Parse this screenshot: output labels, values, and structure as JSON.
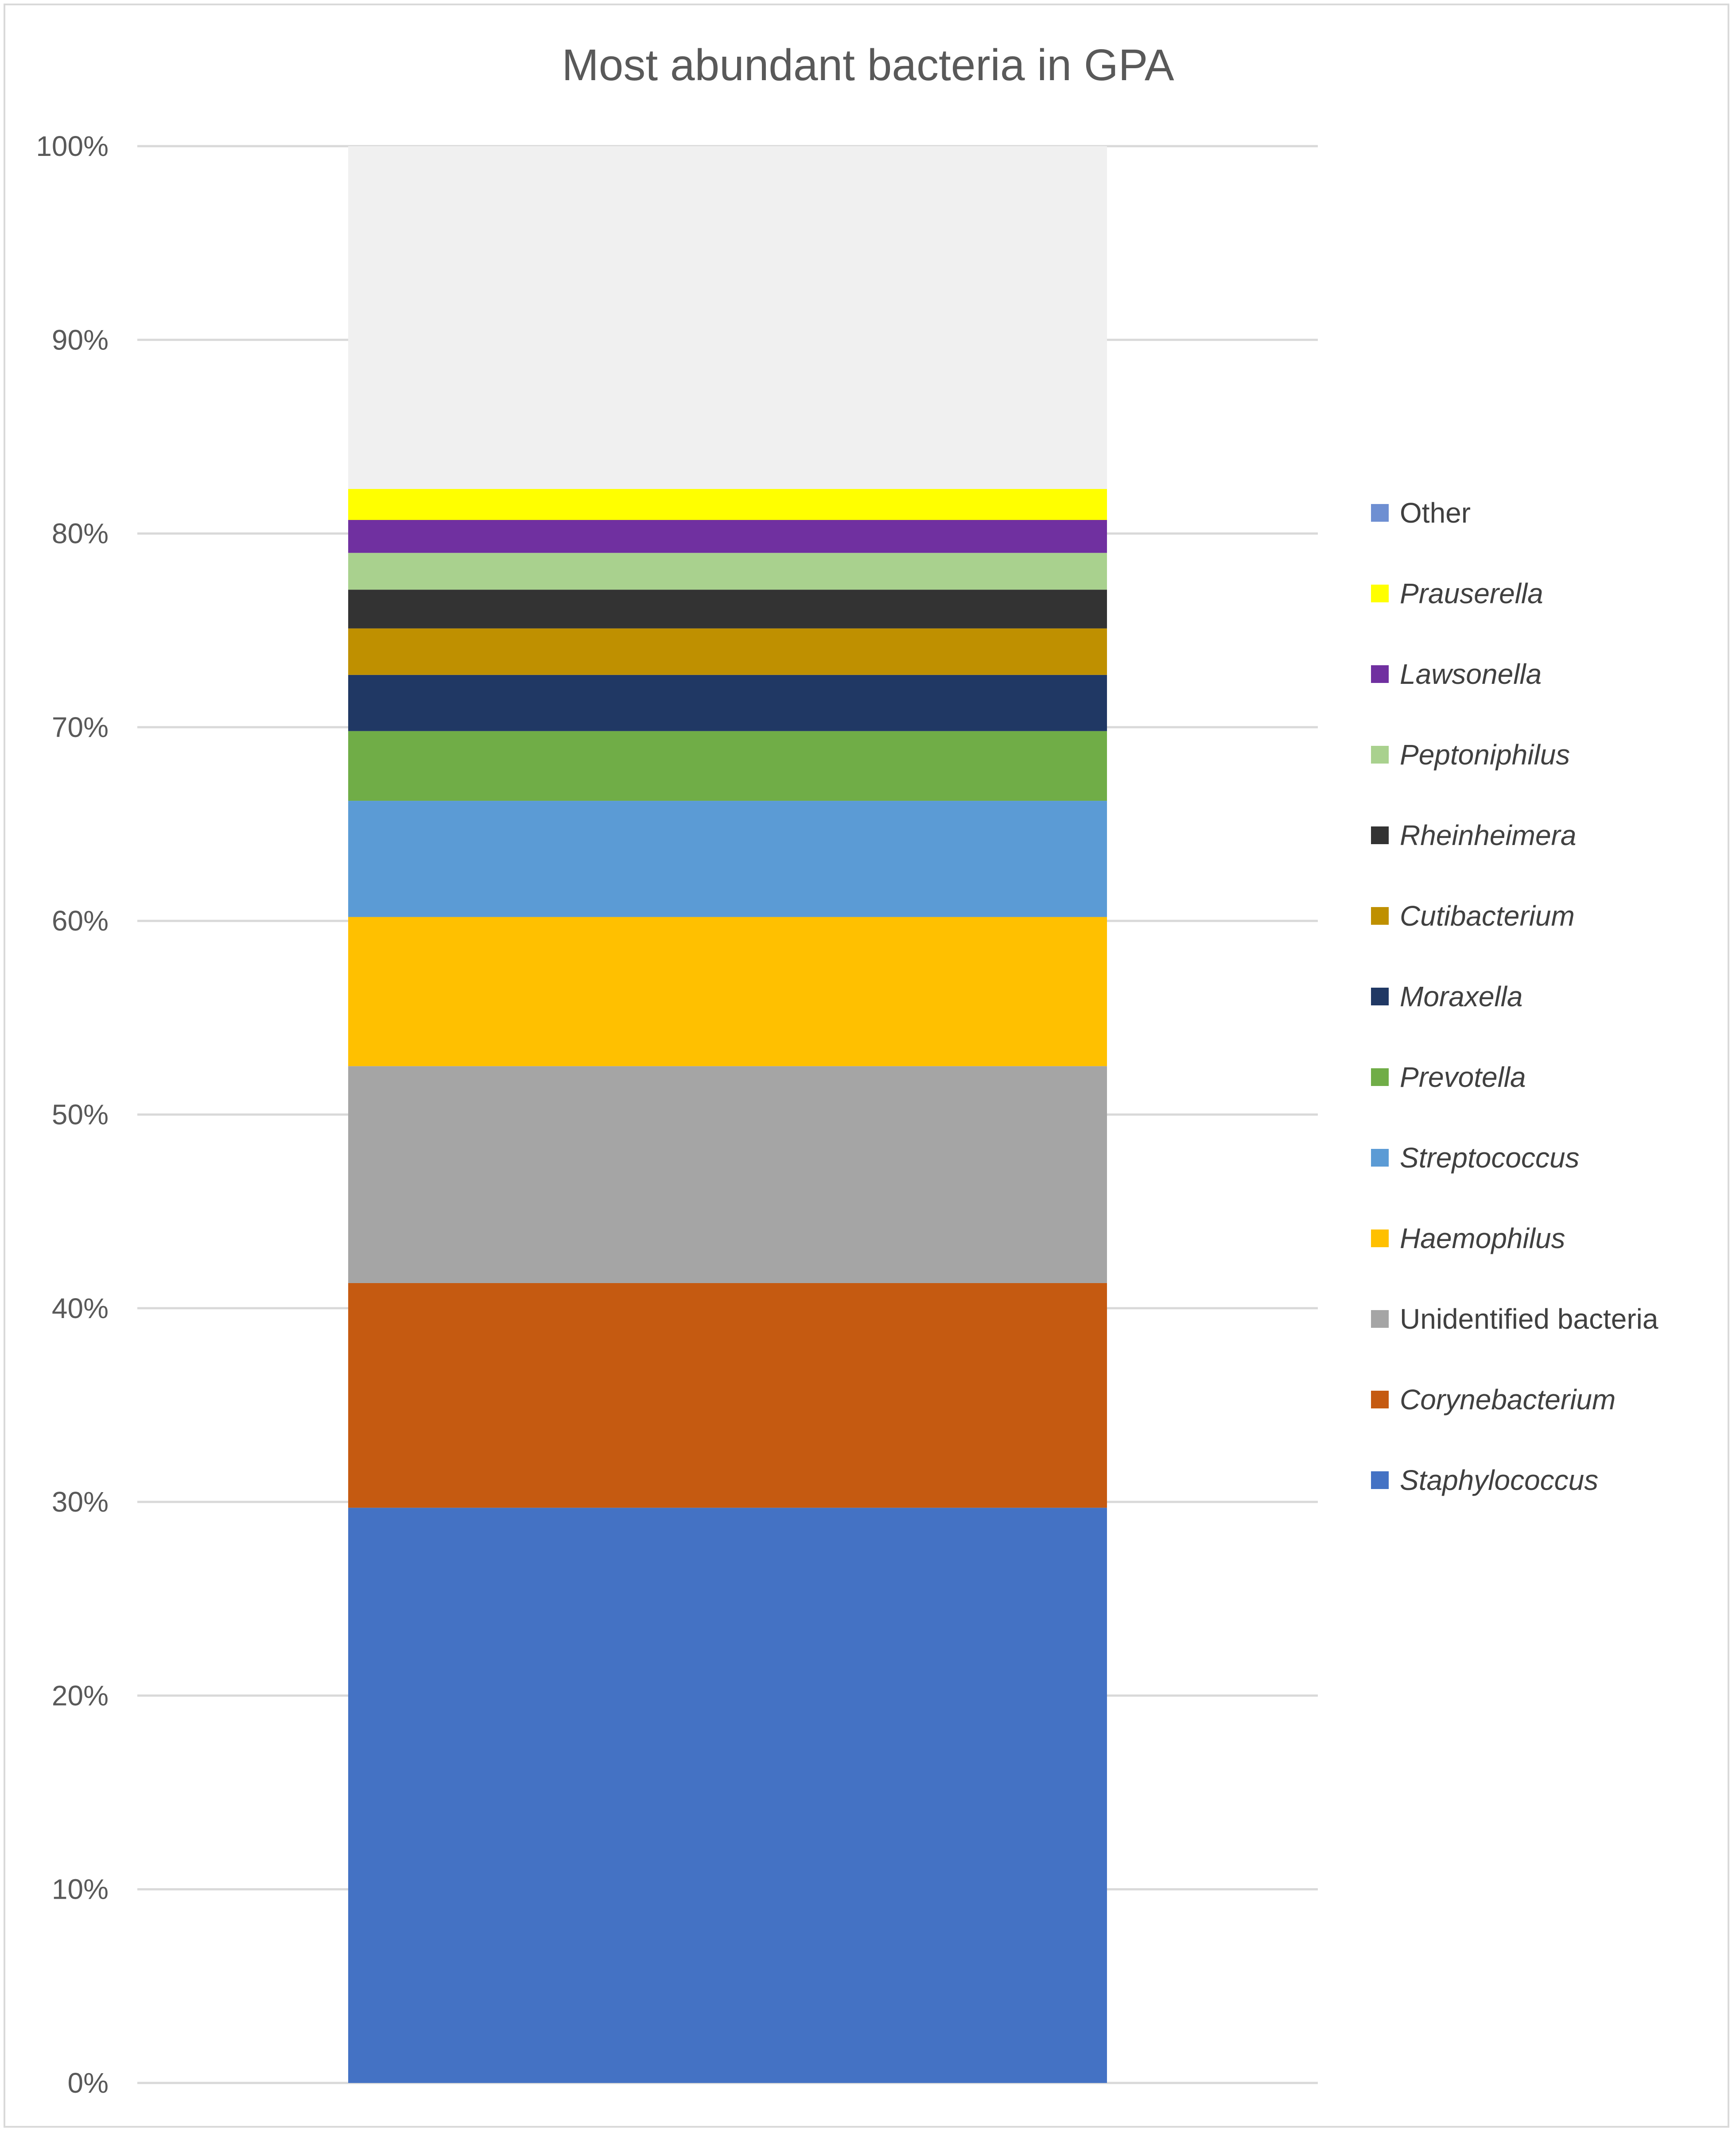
{
  "chart_data": {
    "type": "bar",
    "stacked": true,
    "percent_axis": true,
    "title": "Most abundant bacteria in GPA",
    "xlabel": "",
    "ylabel": "",
    "categories": [
      ""
    ],
    "ylim": [
      0,
      100
    ],
    "yticks": [
      "0%",
      "10%",
      "20%",
      "30%",
      "40%",
      "50%",
      "60%",
      "70%",
      "80%",
      "90%",
      "100%"
    ],
    "grid": true,
    "legend_position": "right",
    "series": [
      {
        "name": "Staphylococcus",
        "values": [
          29.7
        ],
        "color": "#4472C4",
        "italic": true
      },
      {
        "name": "Corynebacterium",
        "values": [
          11.6
        ],
        "color": "#C55A11",
        "italic": true
      },
      {
        "name": "Unidentified bacteria",
        "values": [
          11.2
        ],
        "color": "#A5A5A5",
        "italic": false
      },
      {
        "name": "Haemophilus",
        "values": [
          7.7
        ],
        "color": "#FFC000",
        "italic": true
      },
      {
        "name": "Streptococcus",
        "values": [
          6.0
        ],
        "color": "#5B9BD5",
        "italic": true
      },
      {
        "name": "Prevotella",
        "values": [
          3.6
        ],
        "color": "#70AD47",
        "italic": true
      },
      {
        "name": "Moraxella",
        "values": [
          2.9
        ],
        "color": "#203864",
        "italic": true
      },
      {
        "name": "Cutibacterium",
        "values": [
          2.4
        ],
        "color": "#BF9000",
        "italic": true
      },
      {
        "name": "Rheinheimera",
        "values": [
          2.0
        ],
        "color": "#333333",
        "italic": true
      },
      {
        "name": "Peptoniphilus",
        "values": [
          1.9
        ],
        "color": "#A9D18E",
        "italic": true
      },
      {
        "name": "Lawsonella",
        "values": [
          1.7
        ],
        "color": "#7030A0",
        "italic": true
      },
      {
        "name": "Prauserella",
        "values": [
          1.6
        ],
        "color": "#FFFF00",
        "italic": true
      },
      {
        "name": "Other",
        "values": [
          17.7
        ],
        "color": "#F0F0F0",
        "legend_color": "#6E8FD2",
        "italic": false
      }
    ]
  }
}
